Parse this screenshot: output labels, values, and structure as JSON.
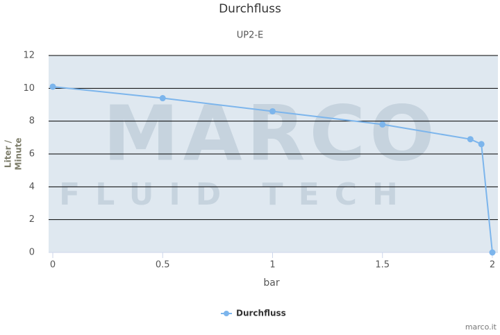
{
  "chart_data": {
    "type": "line",
    "title": "Durchfluss",
    "subtitle": "UP2-E",
    "x_label": "bar",
    "y_label": [
      "Liter /",
      "Minute"
    ],
    "x": [
      0,
      0.5,
      1,
      1.5,
      1.9,
      1.95,
      2
    ],
    "series": [
      {
        "name": "Durchfluss",
        "color": "#7cb5ec",
        "values": [
          10.1,
          9.4,
          8.6,
          7.8,
          6.9,
          6.6,
          0
        ]
      }
    ],
    "xlim": [
      0,
      2
    ],
    "xticks": [
      0,
      0.5,
      1,
      1.5,
      2
    ],
    "ylim": [
      0,
      12
    ],
    "yticks": [
      0,
      2,
      4,
      6,
      8,
      10,
      12
    ],
    "grid": true,
    "legend": "bottom",
    "watermark": [
      "MARCO",
      "FLUID TECH"
    ],
    "credit": "marco.it"
  }
}
